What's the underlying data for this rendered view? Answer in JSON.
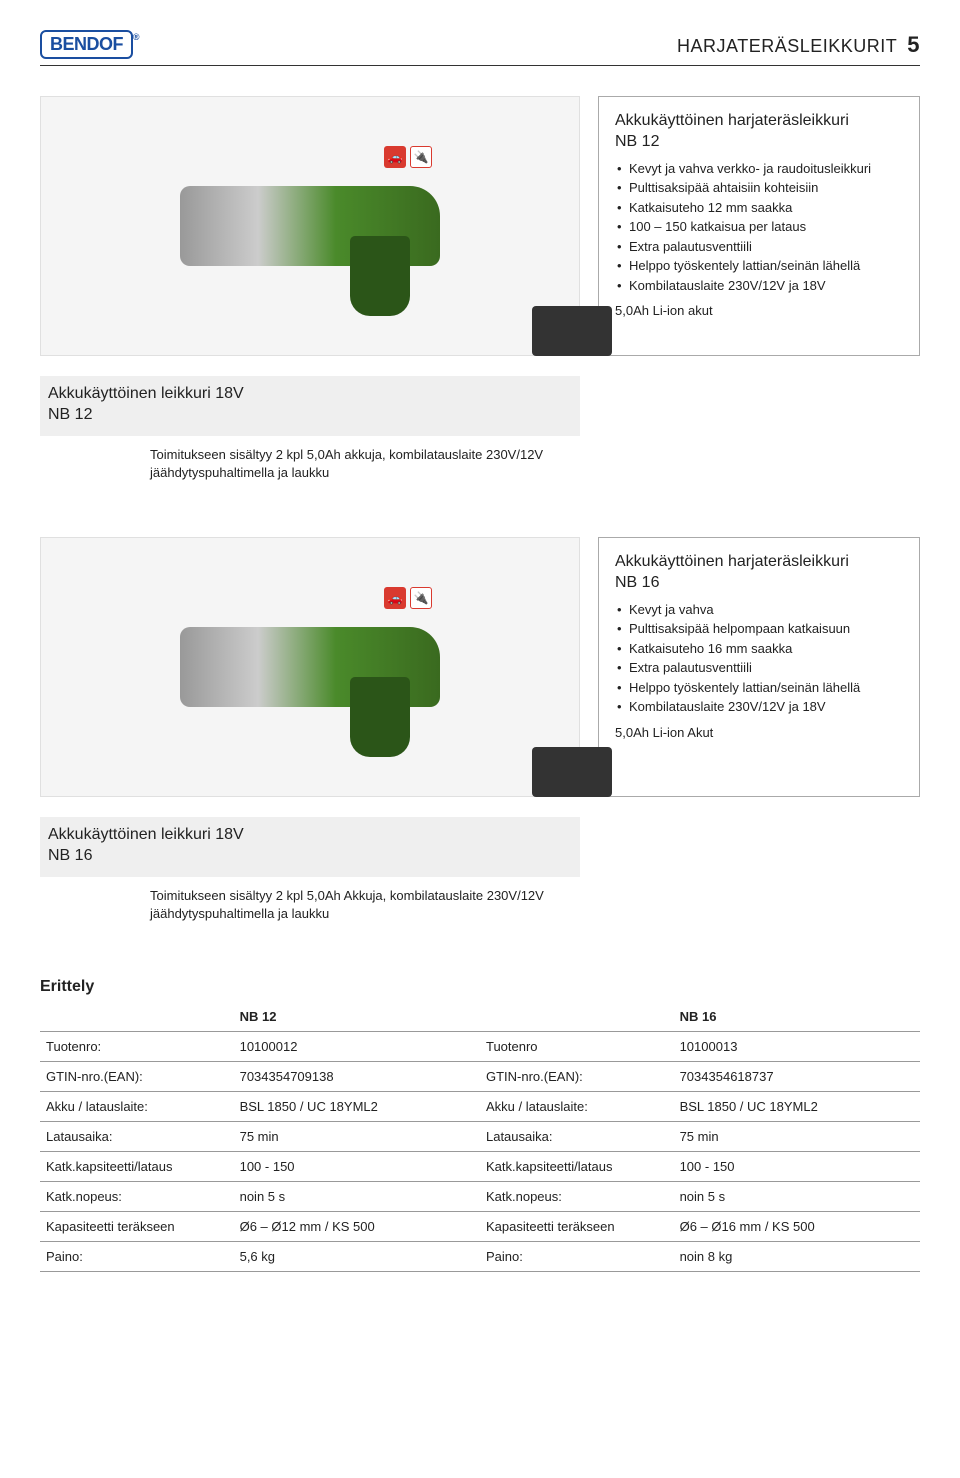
{
  "header": {
    "logo_text": "BENDOF",
    "title": "HARJATERÄSLEIKKURIT",
    "page_number": "5"
  },
  "product1": {
    "title_line1": "Akkukäyttöinen harjateräsleikkuri",
    "title_line2": "NB 12",
    "bullets": [
      "Kevyt ja vahva verkko- ja raudoitusleikkuri",
      "Pulttisaksipää ahtaisiin kohteisiin",
      "Katkaisuteho 12 mm saakka",
      "100 – 150 katkaisua per lataus",
      "Extra palautusventtiili",
      "Helppo työskentely lattian/seinän lähellä",
      "Kombilatauslaite 230V/12V ja 18V"
    ],
    "afterlist": "5,0Ah Li-ion akut"
  },
  "variant1": {
    "name_line1": "Akkukäyttöinen leikkuri 18V",
    "name_line2": "NB 12",
    "detail": "Toimitukseen sisältyy 2 kpl 5,0Ah akkuja, kombilatauslaite 230V/12V jäähdytyspuhaltimella ja laukku"
  },
  "product2": {
    "title_line1": "Akkukäyttöinen harjateräsleikkuri",
    "title_line2": "NB 16",
    "bullets": [
      "Kevyt ja vahva",
      "Pulttisaksipää helpompaan katkaisuun",
      "Katkaisuteho 16 mm saakka",
      "Extra palautusventtiili",
      "Helppo työskentely lattian/seinän lähellä",
      "Kombilatauslaite 230V/12V ja 18V"
    ],
    "afterlist": "5,0Ah Li-ion Akut"
  },
  "variant2": {
    "name_line1": "Akkukäyttöinen leikkuri 18V",
    "name_line2": "NB 16",
    "detail": "Toimitukseen sisältyy 2 kpl 5,0Ah Akkuja, kombilatauslaite 230V/12V jäähdytyspuhaltimella ja laukku"
  },
  "specs": {
    "heading": "Erittely",
    "header_nb12": "NB 12",
    "header_nb16": "NB 16",
    "rows": [
      {
        "l1": "Tuotenro:",
        "v1": "10100012",
        "l2": "Tuotenro",
        "v2": "10100013"
      },
      {
        "l1": "GTIN-nro.(EAN):",
        "v1": "7034354709138",
        "l2": "GTIN-nro.(EAN):",
        "v2": "7034354618737"
      },
      {
        "l1": "Akku / latauslaite:",
        "v1": "BSL 1850 / UC 18YML2",
        "l2": "Akku / latauslaite:",
        "v2": "BSL 1850 / UC 18YML2"
      },
      {
        "l1": "Latausaika:",
        "v1": "75 min",
        "l2": "Latausaika:",
        "v2": "75 min"
      },
      {
        "l1": "Katk.kapsiteetti/lataus",
        "v1": "100 - 150",
        "l2": "Katk.kapsiteetti/lataus",
        "v2": "100 - 150"
      },
      {
        "l1": "Katk.nopeus:",
        "v1": "noin 5 s",
        "l2": "Katk.nopeus:",
        "v2": "noin 5 s"
      },
      {
        "l1": "Kapasiteetti teräkseen",
        "v1": "Ø6 – Ø12 mm / KS 500",
        "l2": "Kapasiteetti teräkseen",
        "v2": "Ø6 – Ø16 mm / KS 500"
      },
      {
        "l1": "Paino:",
        "v1": "5,6 kg",
        "l2": "Paino:",
        "v2": "noin 8 kg"
      }
    ]
  },
  "colors": {
    "rule": "#333333",
    "box_border": "#aaaaaa",
    "row_line": "#999999",
    "variant_bg": "#efefef",
    "logo": "#1a4ea0",
    "accent_red": "#d93a2f",
    "tool_green": "#4a8a2a"
  }
}
